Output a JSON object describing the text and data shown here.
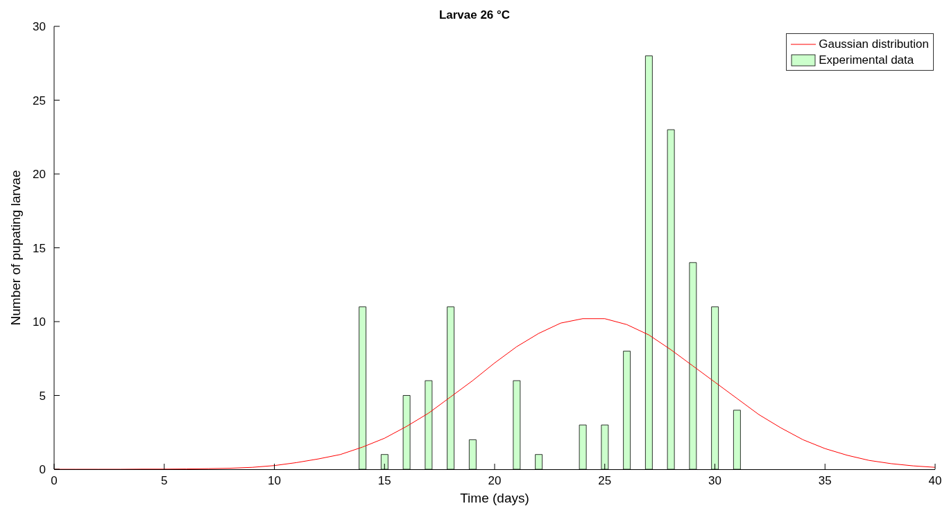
{
  "chart_data": {
    "type": "bar",
    "title": "Larvae 26 °C",
    "xlabel": "Time (days)",
    "ylabel": "Number of pupating larvae",
    "x": [
      0,
      1,
      2,
      3,
      4,
      5,
      6,
      7,
      8,
      9,
      10,
      11,
      12,
      13,
      14,
      15,
      16,
      17,
      18,
      19,
      20,
      21,
      22,
      23,
      24,
      25,
      26,
      27,
      28,
      29,
      30,
      31,
      32,
      33,
      34,
      35,
      36,
      37,
      38,
      39,
      40
    ],
    "series": [
      {
        "type": "line",
        "name": "Gaussian distribution",
        "color": "#ff0000",
        "values": [
          0,
          0,
          0,
          0,
          0.01,
          0.01,
          0.02,
          0.04,
          0.07,
          0.13,
          0.25,
          0.45,
          0.7,
          1.0,
          1.5,
          2.1,
          2.9,
          3.8,
          4.9,
          6.0,
          7.2,
          8.3,
          9.2,
          9.9,
          10.2,
          10.2,
          9.8,
          9.1,
          8.1,
          7.0,
          5.9,
          4.8,
          3.7,
          2.8,
          2.0,
          1.4,
          0.95,
          0.6,
          0.38,
          0.23,
          0.13
        ]
      },
      {
        "name": "Experimental data",
        "color": "#ccffcc",
        "values": [
          0,
          0,
          0,
          0,
          0,
          0,
          0,
          0,
          0,
          0,
          0,
          0,
          0,
          0,
          11,
          1,
          5,
          6,
          11,
          2,
          0,
          6,
          1,
          0,
          3,
          3,
          8,
          28,
          23,
          14,
          11,
          4,
          0,
          0,
          0,
          0,
          0,
          0,
          0,
          0,
          0
        ]
      }
    ],
    "xlim": [
      0,
      40
    ],
    "xticks": [
      0,
      5,
      10,
      15,
      20,
      25,
      30,
      35,
      40
    ],
    "ylim": [
      0,
      30
    ],
    "yticks": [
      0,
      5,
      10,
      15,
      20,
      25,
      30
    ],
    "legend": "top right",
    "grid": false
  }
}
